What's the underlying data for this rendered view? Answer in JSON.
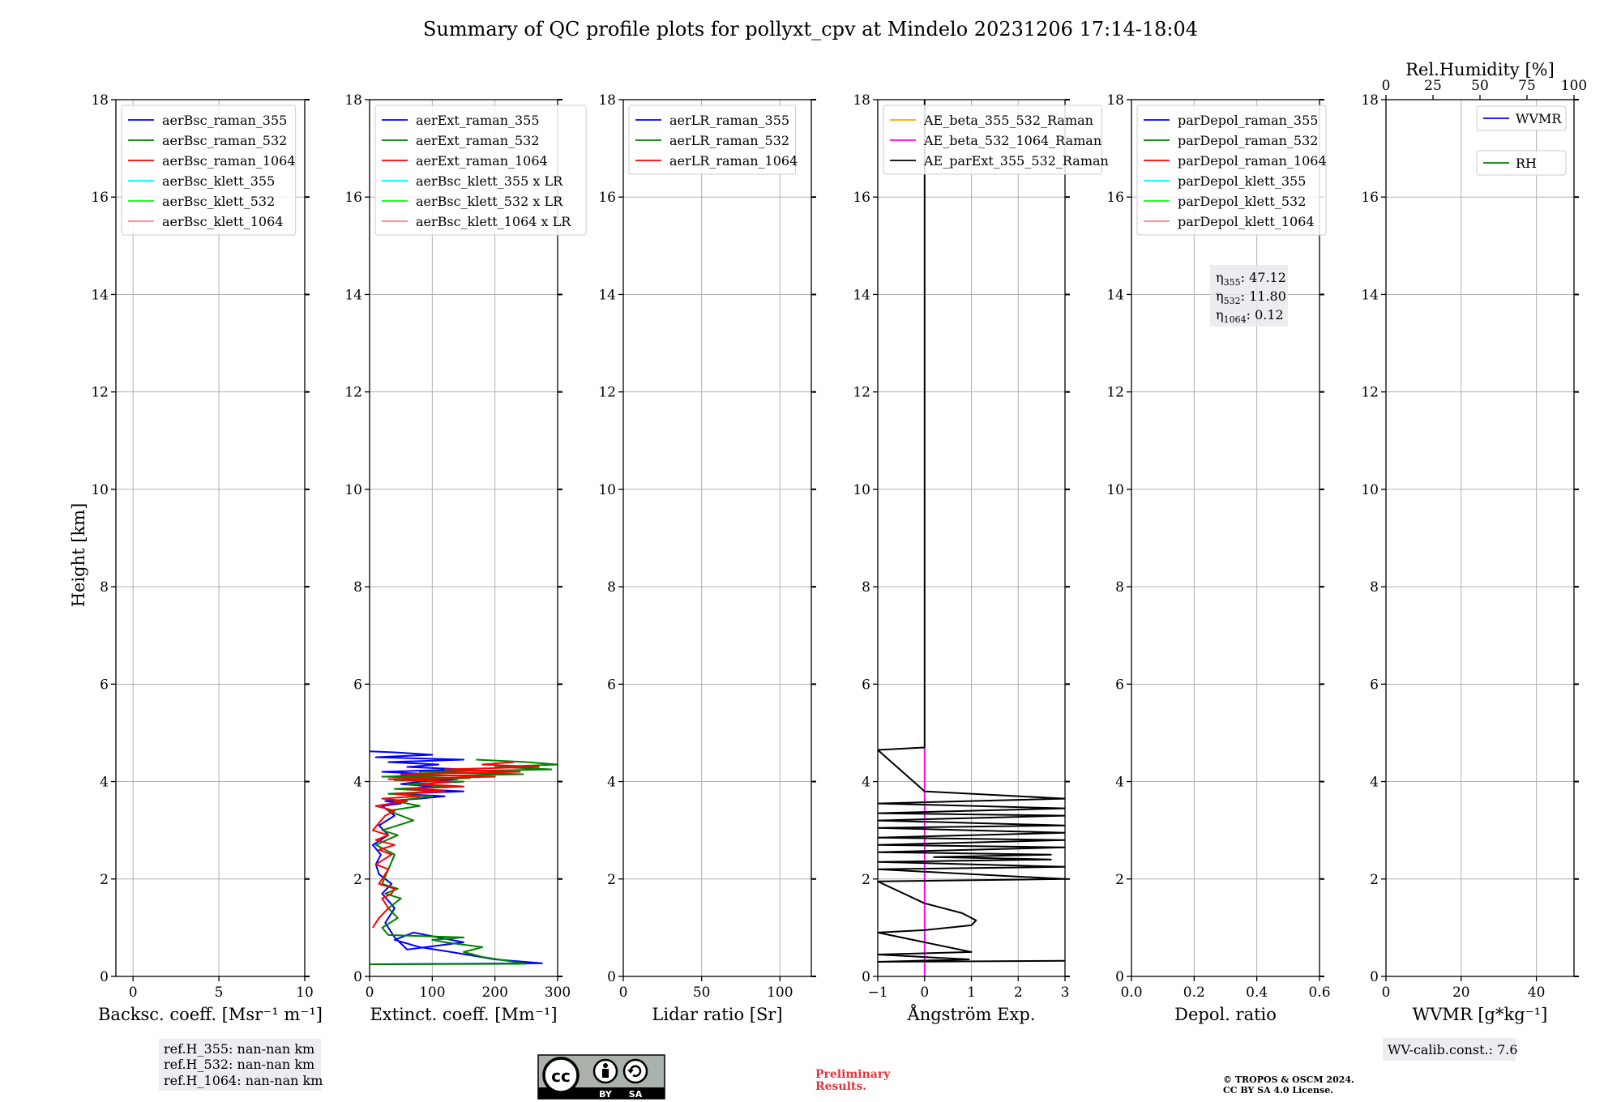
{
  "chart_data": {
    "type": "line",
    "title": "Summary of QC profile plots for pollyxt_cpv at Mindelo 20231206 17:14-18:04",
    "ylabel": "Height [km]",
    "ylim": [
      0,
      18
    ],
    "yticks": [
      "0",
      "2",
      "4",
      "6",
      "8",
      "10",
      "12",
      "14",
      "16",
      "18"
    ],
    "grid": true,
    "colors": {
      "c355": "#0000ff",
      "c532": "#008000",
      "c1064": "#ff0000",
      "k355": "#00ffff",
      "k532": "#00ff00",
      "k1064": "#ff8080",
      "orange": "#ffa500",
      "magenta": "#ff00ff",
      "black": "#000000"
    },
    "panels": [
      {
        "id": "backscatter",
        "xlabel": "Backsc. coeff. [Msr⁻¹ m⁻¹]",
        "xlim": [
          -1,
          10
        ],
        "xticks": [
          0,
          5,
          10
        ],
        "xtick_labels": [
          "0",
          "5",
          "10"
        ],
        "legend_position": "upper-left",
        "legend": [
          {
            "label": "aerBsc_raman_355",
            "color": "#0000ff"
          },
          {
            "label": "aerBsc_raman_532",
            "color": "#008000"
          },
          {
            "label": "aerBsc_raman_1064",
            "color": "#ff0000"
          },
          {
            "label": "aerBsc_klett_355",
            "color": "#00ffff"
          },
          {
            "label": "aerBsc_klett_532",
            "color": "#00ff00"
          },
          {
            "label": "aerBsc_klett_1064",
            "color": "#ff8080"
          }
        ],
        "series": []
      },
      {
        "id": "extinction",
        "xlabel": "Extinct. coeff. [Mm⁻¹]",
        "xlim": [
          0,
          300
        ],
        "xticks": [
          0,
          100,
          200,
          300
        ],
        "xtick_labels": [
          "0",
          "100",
          "200",
          "300"
        ],
        "legend_position": "upper-left",
        "legend": [
          {
            "label": "aerExt_raman_355",
            "color": "#0000ff"
          },
          {
            "label": "aerExt_raman_532",
            "color": "#008000"
          },
          {
            "label": "aerExt_raman_1064",
            "color": "#ff0000"
          },
          {
            "label": "aerBsc_klett_355 x LR",
            "color": "#00ffff"
          },
          {
            "label": "aerBsc_klett_532 x LR",
            "color": "#00ff00"
          },
          {
            "label": "aerBsc_klett_1064 x LR",
            "color": "#ff8080"
          }
        ],
        "series": [
          {
            "color": "#0000ff",
            "x": [
              0,
              275,
              200,
              130,
              80,
              40,
              70,
              150,
              60,
              40,
              25,
              40,
              20,
              35,
              15,
              10,
              18,
              5,
              30,
              15,
              40,
              20,
              50,
              25,
              80,
              120,
              40,
              150,
              60,
              100,
              50,
              80,
              140,
              30,
              100,
              20,
              150,
              60,
              110,
              30,
              150,
              10,
              100,
              40,
              0
            ],
            "y": [
              0.25,
              0.27,
              0.35,
              0.5,
              0.6,
              0.75,
              0.9,
              0.7,
              0.55,
              0.8,
              1.1,
              1.4,
              1.7,
              1.9,
              2.1,
              2.3,
              2.5,
              2.7,
              2.9,
              3.1,
              3.3,
              3.5,
              3.55,
              3.6,
              3.65,
              3.7,
              3.75,
              3.8,
              3.85,
              3.9,
              3.95,
              4.0,
              4.05,
              4.1,
              4.15,
              4.2,
              4.25,
              4.3,
              4.35,
              4.4,
              4.45,
              4.5,
              4.55,
              4.6,
              4.62
            ]
          },
          {
            "color": "#008000",
            "x": [
              0,
              250,
              180,
              150,
              180,
              120,
              100,
              150,
              30,
              20,
              45,
              30,
              50,
              25,
              45,
              20,
              40,
              10,
              45,
              20,
              70,
              30,
              80,
              40,
              100,
              30,
              110,
              40,
              130,
              60,
              150,
              40,
              160,
              20,
              245,
              80,
              290,
              200,
              300,
              250,
              170
            ],
            "y": [
              0.25,
              0.26,
              0.4,
              0.5,
              0.6,
              0.7,
              0.75,
              0.8,
              0.85,
              1.0,
              1.2,
              1.4,
              1.6,
              1.7,
              1.8,
              1.9,
              2.5,
              2.7,
              2.9,
              3.0,
              3.2,
              3.4,
              3.5,
              3.6,
              3.7,
              3.75,
              3.8,
              3.85,
              3.9,
              3.95,
              4.0,
              4.03,
              4.07,
              4.1,
              4.15,
              4.2,
              4.25,
              4.3,
              4.35,
              4.4,
              4.45
            ]
          },
          {
            "color": "#ff0000",
            "x": [
              5,
              15,
              30,
              20,
              35,
              40,
              15,
              30,
              10,
              35,
              15,
              40,
              10,
              30,
              5,
              25,
              40,
              10,
              60,
              20,
              80,
              40,
              120,
              60,
              150,
              80,
              130,
              30,
              200,
              50,
              240,
              120,
              270,
              180,
              230
            ],
            "y": [
              1.0,
              1.2,
              1.4,
              1.6,
              1.7,
              1.8,
              1.9,
              2.2,
              2.3,
              2.5,
              2.6,
              2.7,
              2.8,
              2.9,
              3.0,
              3.3,
              3.4,
              3.5,
              3.6,
              3.65,
              3.7,
              3.75,
              3.8,
              3.85,
              3.9,
              3.95,
              4.0,
              4.05,
              4.1,
              4.15,
              4.2,
              4.25,
              4.3,
              4.35,
              4.4
            ]
          }
        ]
      },
      {
        "id": "lidar-ratio",
        "xlabel": "Lidar ratio [Sr]",
        "xlim": [
          0,
          120
        ],
        "xticks": [
          0,
          50,
          100
        ],
        "xtick_labels": [
          "0",
          "50",
          "100"
        ],
        "legend_position": "upper-left",
        "legend": [
          {
            "label": "aerLR_raman_355",
            "color": "#0000ff"
          },
          {
            "label": "aerLR_raman_532",
            "color": "#008000"
          },
          {
            "label": "aerLR_raman_1064",
            "color": "#ff0000"
          }
        ],
        "series": []
      },
      {
        "id": "angstrom",
        "xlabel": "Ångström Exp.",
        "xlim": [
          -1,
          3
        ],
        "xticks": [
          -1,
          0,
          1,
          2,
          3
        ],
        "xtick_labels": [
          "−1",
          "0",
          "1",
          "2",
          "3"
        ],
        "legend_position": "upper-left",
        "legend": [
          {
            "label": "AE_beta_355_532_Raman",
            "color": "#ffa500"
          },
          {
            "label": "AE_beta_532_1064_Raman",
            "color": "#ff00ff"
          },
          {
            "label": "AE_parExt_355_532_Raman",
            "color": "#000000"
          }
        ],
        "series": [
          {
            "color": "#ff00ff",
            "x": [
              0,
              0
            ],
            "y": [
              0,
              4.7
            ]
          },
          {
            "color": "#000000",
            "x": [
              0,
              0,
              -1,
              0,
              3,
              -1,
              3,
              -1,
              3,
              -1,
              3,
              -1,
              3,
              -1,
              3,
              -1,
              3,
              -1,
              2.7,
              0.2,
              2.7,
              -1,
              3,
              -1,
              3,
              -1,
              0,
              0.8,
              1.1,
              1.0,
              0,
              -1,
              1.0,
              -1,
              0.95,
              -1,
              3
            ],
            "y": [
              18,
              4.7,
              4.65,
              3.8,
              3.65,
              3.55,
              3.45,
              3.35,
              3.3,
              3.2,
              3.1,
              3.05,
              2.95,
              2.85,
              2.8,
              2.7,
              2.65,
              2.55,
              2.5,
              2.45,
              2.4,
              2.35,
              2.25,
              2.2,
              2.0,
              1.95,
              1.5,
              1.3,
              1.15,
              1.05,
              0.95,
              0.9,
              0.5,
              0.45,
              0.35,
              0.3,
              0.32
            ]
          }
        ]
      },
      {
        "id": "depol",
        "xlabel": "Depol. ratio",
        "xlim": [
          0,
          0.6
        ],
        "xticks": [
          0,
          0.2,
          0.4,
          0.6
        ],
        "xtick_labels": [
          "0.0",
          "0.2",
          "0.4",
          "0.6"
        ],
        "legend_position": "upper-left",
        "legend": [
          {
            "label": "parDepol_raman_355",
            "color": "#0000ff"
          },
          {
            "label": "parDepol_raman_532",
            "color": "#008000"
          },
          {
            "label": "parDepol_raman_1064",
            "color": "#ff0000"
          },
          {
            "label": "parDepol_klett_355",
            "color": "#00ffff"
          },
          {
            "label": "parDepol_klett_532",
            "color": "#00ff00"
          },
          {
            "label": "parDepol_klett_1064",
            "color": "#ff8080"
          }
        ],
        "series": []
      },
      {
        "id": "wvmr",
        "xlabel": "WVMR [g*kg⁻¹]",
        "xlim": [
          0,
          50
        ],
        "xticks": [
          0,
          20,
          40
        ],
        "xtick_labels": [
          "0",
          "20",
          "40"
        ],
        "top_xlabel": "Rel.Humidity [%]",
        "top_xlim": [
          0,
          100
        ],
        "top_xticks": [
          0,
          25,
          50,
          75,
          100
        ],
        "top_xtick_labels": [
          "0",
          "25",
          "50",
          "75",
          "100"
        ],
        "legend_position": "upper-right",
        "legend": [
          {
            "label": "WVMR",
            "color": "#0000ff"
          },
          {
            "label": "RH",
            "color": "#008000"
          }
        ],
        "series": []
      }
    ]
  },
  "annotations": {
    "eta": {
      "e355": "47.12",
      "e532": "11.80",
      "e1064": "0.12"
    },
    "refh": [
      "ref.H_355: nan-nan km",
      "ref.H_532: nan-nan km",
      "ref.H_1064: nan-nan km"
    ],
    "wv_calib": "WV-calib.const.: 7.6",
    "prelim": [
      "Preliminary",
      "Results."
    ],
    "copyright": [
      "© TROPOS & OSCM 2024.",
      "CC BY SA 4.0 License."
    ],
    "cc_labels": [
      "BY",
      "SA"
    ]
  }
}
